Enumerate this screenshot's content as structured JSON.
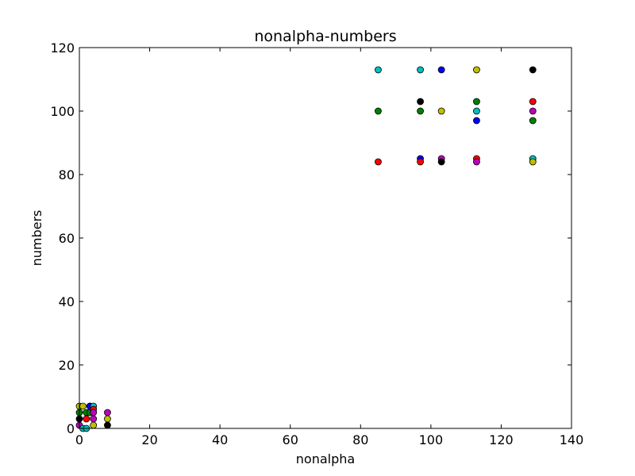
{
  "chart_data": {
    "type": "scatter",
    "title": "nonalpha-numbers",
    "xlabel": "nonalpha",
    "ylabel": "numbers",
    "xlim": [
      0,
      140
    ],
    "ylim": [
      0,
      120
    ],
    "xticks": [
      0,
      20,
      40,
      60,
      80,
      100,
      120,
      140
    ],
    "yticks": [
      0,
      20,
      40,
      60,
      80,
      100,
      120
    ],
    "xtick_labels": [
      "0",
      "20",
      "40",
      "60",
      "80",
      "100",
      "120",
      "140"
    ],
    "ytick_labels": [
      "0",
      "20",
      "40",
      "60",
      "80",
      "100",
      "120"
    ],
    "grid": false,
    "legend": "none",
    "marker_colors": {
      "blue": "#0000ff",
      "green": "#008000",
      "red": "#ff0000",
      "cyan": "#00bfbf",
      "magenta": "#bf00bf",
      "yellow": "#bfbf00",
      "black": "#000000"
    },
    "points": [
      {
        "x": 85,
        "y": 113,
        "color": "cyan"
      },
      {
        "x": 97,
        "y": 113,
        "color": "cyan"
      },
      {
        "x": 103,
        "y": 113,
        "color": "blue"
      },
      {
        "x": 113,
        "y": 113,
        "color": "yellow"
      },
      {
        "x": 129,
        "y": 113,
        "color": "black"
      },
      {
        "x": 97,
        "y": 103,
        "color": "black"
      },
      {
        "x": 113,
        "y": 103,
        "color": "green"
      },
      {
        "x": 129,
        "y": 103,
        "color": "red"
      },
      {
        "x": 85,
        "y": 100,
        "color": "green"
      },
      {
        "x": 97,
        "y": 100,
        "color": "green"
      },
      {
        "x": 103,
        "y": 100,
        "color": "yellow"
      },
      {
        "x": 113,
        "y": 100,
        "color": "cyan"
      },
      {
        "x": 129,
        "y": 100,
        "color": "magenta"
      },
      {
        "x": 113,
        "y": 97,
        "color": "blue"
      },
      {
        "x": 129,
        "y": 97,
        "color": "green"
      },
      {
        "x": 85,
        "y": 84,
        "color": "red"
      },
      {
        "x": 97,
        "y": 85,
        "color": "blue"
      },
      {
        "x": 97,
        "y": 84,
        "color": "red"
      },
      {
        "x": 103,
        "y": 85,
        "color": "magenta"
      },
      {
        "x": 103,
        "y": 84,
        "color": "black"
      },
      {
        "x": 113,
        "y": 85,
        "color": "red"
      },
      {
        "x": 113,
        "y": 84,
        "color": "magenta"
      },
      {
        "x": 129,
        "y": 85,
        "color": "cyan"
      },
      {
        "x": 129,
        "y": 84,
        "color": "yellow"
      },
      {
        "x": 0,
        "y": 7,
        "color": "yellow"
      },
      {
        "x": 0,
        "y": 5,
        "color": "green"
      },
      {
        "x": 0,
        "y": 3,
        "color": "black"
      },
      {
        "x": 0,
        "y": 1,
        "color": "magenta"
      },
      {
        "x": 1,
        "y": 7,
        "color": "yellow"
      },
      {
        "x": 1,
        "y": 0,
        "color": "cyan"
      },
      {
        "x": 2,
        "y": 5,
        "color": "green"
      },
      {
        "x": 2,
        "y": 3,
        "color": "red"
      },
      {
        "x": 2,
        "y": 0,
        "color": "cyan"
      },
      {
        "x": 3,
        "y": 7,
        "color": "cyan"
      },
      {
        "x": 3,
        "y": 5,
        "color": "green"
      },
      {
        "x": 3,
        "y": 7,
        "color": "blue"
      },
      {
        "x": 4,
        "y": 7,
        "color": "cyan"
      },
      {
        "x": 4,
        "y": 6,
        "color": "red"
      },
      {
        "x": 4,
        "y": 5,
        "color": "magenta"
      },
      {
        "x": 4,
        "y": 3,
        "color": "magenta"
      },
      {
        "x": 4,
        "y": 1,
        "color": "yellow"
      },
      {
        "x": 8,
        "y": 5,
        "color": "magenta"
      },
      {
        "x": 8,
        "y": 3,
        "color": "yellow"
      },
      {
        "x": 8,
        "y": 1,
        "color": "black"
      }
    ]
  }
}
